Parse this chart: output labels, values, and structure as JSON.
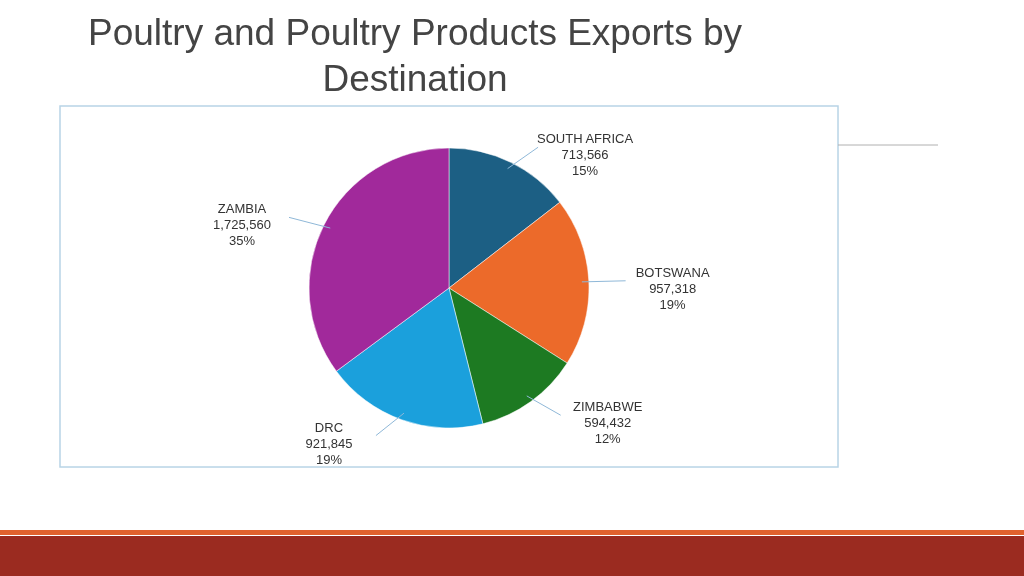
{
  "chart_data": {
    "type": "pie",
    "title": "Poultry and Poultry Products Exports by Destination",
    "categories": [
      "SOUTH AFRICA",
      "BOTSWANA",
      "ZIMBABWE",
      "DRC",
      "ZAMBIA"
    ],
    "values": [
      713566,
      957318,
      594432,
      921845,
      1725560
    ],
    "colors": [
      "#1c5f84",
      "#ec6a2a",
      "#1d7a22",
      "#1ba0dc",
      "#a1299b"
    ],
    "value_labels": [
      "713,566\n15%",
      "957,318\n19%",
      "594,432\n12%",
      "921,845\n19%",
      "1,725,560\n35%"
    ],
    "legend": false
  }
}
